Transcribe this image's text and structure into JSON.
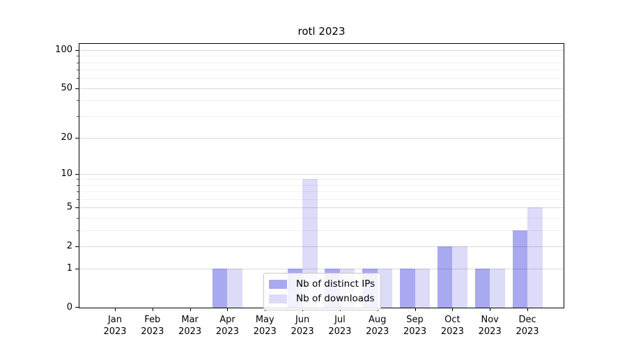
{
  "chart_data": {
    "type": "bar",
    "title": "rotl 2023",
    "categories": [
      "Jan",
      "Feb",
      "Mar",
      "Apr",
      "May",
      "Jun",
      "Jul",
      "Aug",
      "Sep",
      "Oct",
      "Nov",
      "Dec"
    ],
    "x_year": "2023",
    "series": [
      {
        "name": "Nb of distinct IPs",
        "color": "#a9a9f0",
        "values": [
          0,
          0,
          0,
          1,
          0,
          1,
          1,
          1,
          1,
          2,
          1,
          3
        ]
      },
      {
        "name": "Nb of downloads",
        "color": "#dcdcf8",
        "values": [
          0,
          0,
          0,
          1,
          0,
          9,
          1,
          1,
          1,
          2,
          1,
          5
        ]
      }
    ],
    "y_axis": {
      "scale": "log1p",
      "ticks": [
        0,
        1,
        2,
        5,
        10,
        20,
        50,
        100
      ],
      "minor_ticks": [
        3,
        4,
        6,
        7,
        8,
        9,
        30,
        40,
        60,
        70,
        80,
        90
      ],
      "max": 112
    },
    "legend": {
      "position": "lower center"
    },
    "grid": true
  }
}
